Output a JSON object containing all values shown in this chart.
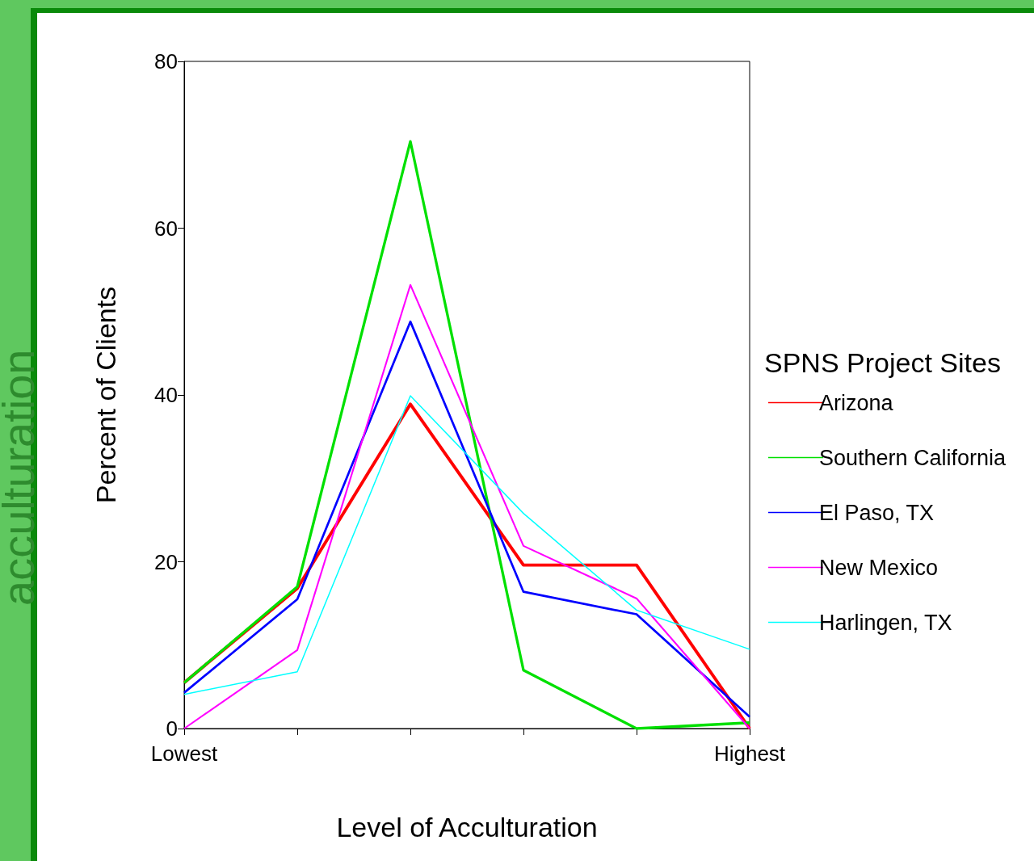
{
  "chart_data": {
    "type": "line",
    "xlabel": "Level of Acculturation",
    "ylabel": "Percent of Clients",
    "legend_title": "SPNS Project Sites",
    "annotations": [
      "acculturation"
    ],
    "categories": [
      "Lowest",
      null,
      null,
      null,
      null,
      "Highest"
    ],
    "series": [
      {
        "name": "Arizona",
        "color": "#ff0000",
        "values": [
          5.5,
          16.8,
          38.9,
          19.6,
          19.6,
          0
        ]
      },
      {
        "name": "Southern California",
        "color": "#00e000",
        "values": [
          5.5,
          17,
          70.4,
          7,
          0,
          0.7
        ]
      },
      {
        "name": "El Paso, TX",
        "color": "#0000ff",
        "values": [
          4.3,
          15.5,
          48.8,
          16.4,
          13.7,
          1.4
        ]
      },
      {
        "name": "New Mexico",
        "color": "#ff00ff",
        "values": [
          0,
          9.4,
          53.2,
          21.9,
          15.6,
          0
        ]
      },
      {
        "name": "Harlingen, TX",
        "color": "#00ffff",
        "values": [
          4.1,
          6.8,
          39.9,
          25.8,
          14.2,
          9.5
        ]
      }
    ],
    "ylim": [
      0,
      80
    ],
    "yticks": [
      0,
      20,
      40,
      60,
      80
    ],
    "grid": false,
    "legend": "right",
    "marker": "none",
    "line_style": "solid"
  }
}
